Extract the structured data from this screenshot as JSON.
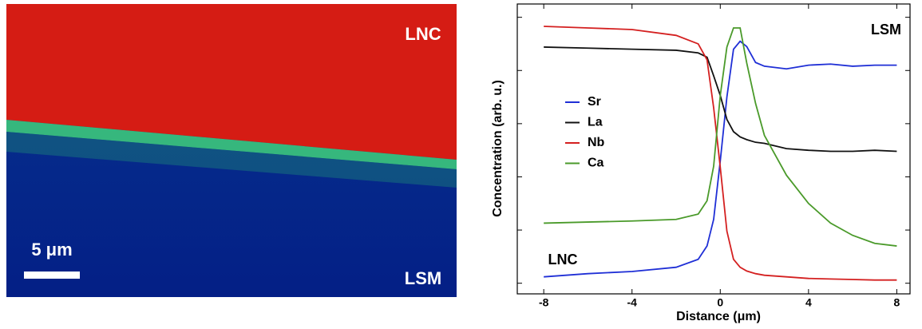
{
  "image": {
    "labels": [
      "LNC",
      "LSM"
    ],
    "scale_bar": "5 μm"
  },
  "chart_data": {
    "type": "line",
    "x_label": "Distance (μm)",
    "y_label": "Concentration (arb. u.)",
    "annotations": [
      "LSM",
      "LNC"
    ],
    "x": [
      -8,
      -6,
      -4,
      -2,
      -1,
      -0.6,
      -0.3,
      0,
      0.3,
      0.6,
      0.9,
      1.2,
      1.6,
      2,
      3,
      4,
      5,
      6,
      7,
      8
    ],
    "series": [
      {
        "name": "Sr",
        "color": "#1f2fd6",
        "values": [
          0.12,
          0.18,
          0.22,
          0.3,
          0.45,
          0.7,
          1.2,
          2.3,
          3.5,
          4.4,
          4.55,
          4.45,
          4.15,
          4.08,
          4.03,
          4.1,
          4.12,
          4.08,
          4.1,
          4.1
        ]
      },
      {
        "name": "La",
        "color": "#111111",
        "values": [
          4.44,
          4.42,
          4.4,
          4.38,
          4.33,
          4.25,
          3.9,
          3.53,
          3.08,
          2.85,
          2.75,
          2.7,
          2.65,
          2.63,
          2.53,
          2.5,
          2.48,
          2.48,
          2.5,
          2.48
        ]
      },
      {
        "name": "Nb",
        "color": "#d42020",
        "values": [
          4.83,
          4.8,
          4.77,
          4.66,
          4.5,
          4.2,
          3.3,
          2.18,
          0.98,
          0.45,
          0.3,
          0.23,
          0.18,
          0.15,
          0.12,
          0.09,
          0.08,
          0.07,
          0.06,
          0.06
        ]
      },
      {
        "name": "Ca",
        "color": "#4a9a2a",
        "values": [
          1.13,
          1.15,
          1.17,
          1.2,
          1.3,
          1.55,
          2.2,
          3.53,
          4.44,
          4.8,
          4.8,
          4.14,
          3.38,
          2.78,
          2.03,
          1.5,
          1.13,
          0.9,
          0.75,
          0.7
        ]
      }
    ],
    "xlim": [
      -9.2,
      8.6
    ],
    "xticks": [
      -8,
      -4,
      0,
      4,
      8
    ],
    "ylim": [
      -0.2,
      5.25
    ],
    "yticks": [
      0,
      1,
      2,
      3,
      4,
      5
    ]
  }
}
